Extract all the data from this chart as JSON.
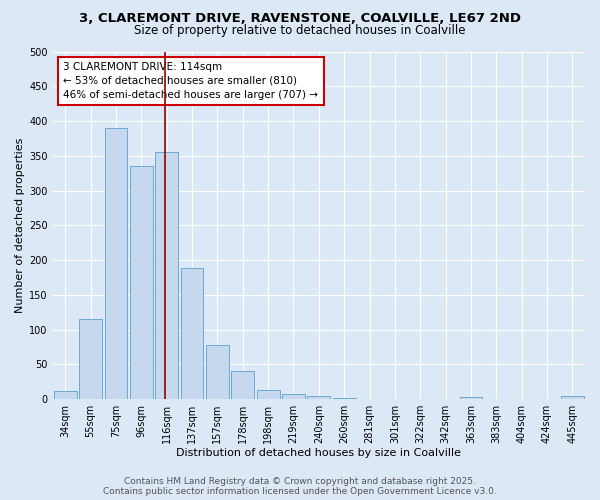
{
  "title": "3, CLAREMONT DRIVE, RAVENSTONE, COALVILLE, LE67 2ND",
  "subtitle": "Size of property relative to detached houses in Coalville",
  "xlabel": "Distribution of detached houses by size in Coalville",
  "ylabel": "Number of detached properties",
  "bar_labels": [
    "34sqm",
    "55sqm",
    "75sqm",
    "96sqm",
    "116sqm",
    "137sqm",
    "157sqm",
    "178sqm",
    "198sqm",
    "219sqm",
    "240sqm",
    "260sqm",
    "281sqm",
    "301sqm",
    "322sqm",
    "342sqm",
    "363sqm",
    "383sqm",
    "404sqm",
    "424sqm",
    "445sqm"
  ],
  "bar_values": [
    11,
    115,
    390,
    336,
    355,
    188,
    78,
    40,
    13,
    7,
    4,
    2,
    0,
    0,
    0,
    0,
    3,
    0,
    0,
    0,
    4
  ],
  "bar_color": "#c5d8ee",
  "bar_edge_color": "#6aaad4",
  "vline_x_index": 4,
  "vline_color": "#990000",
  "annotation_line1": "3 CLAREMONT DRIVE: 114sqm",
  "annotation_line2": "← 53% of detached houses are smaller (810)",
  "annotation_line3": "46% of semi-detached houses are larger (707) →",
  "annotation_box_facecolor": "#ffffff",
  "annotation_box_edgecolor": "#cc0000",
  "ylim": [
    0,
    500
  ],
  "yticks": [
    0,
    50,
    100,
    150,
    200,
    250,
    300,
    350,
    400,
    450,
    500
  ],
  "bg_color": "#dce8f5",
  "plot_bg_color": "#dce8f5",
  "grid_color": "#ffffff",
  "footer_text": "Contains HM Land Registry data © Crown copyright and database right 2025.\nContains public sector information licensed under the Open Government Licence v3.0.",
  "title_fontsize": 9.5,
  "subtitle_fontsize": 8.5,
  "xlabel_fontsize": 8,
  "ylabel_fontsize": 8,
  "tick_fontsize": 7,
  "annotation_fontsize": 7.5,
  "footer_fontsize": 6.5
}
